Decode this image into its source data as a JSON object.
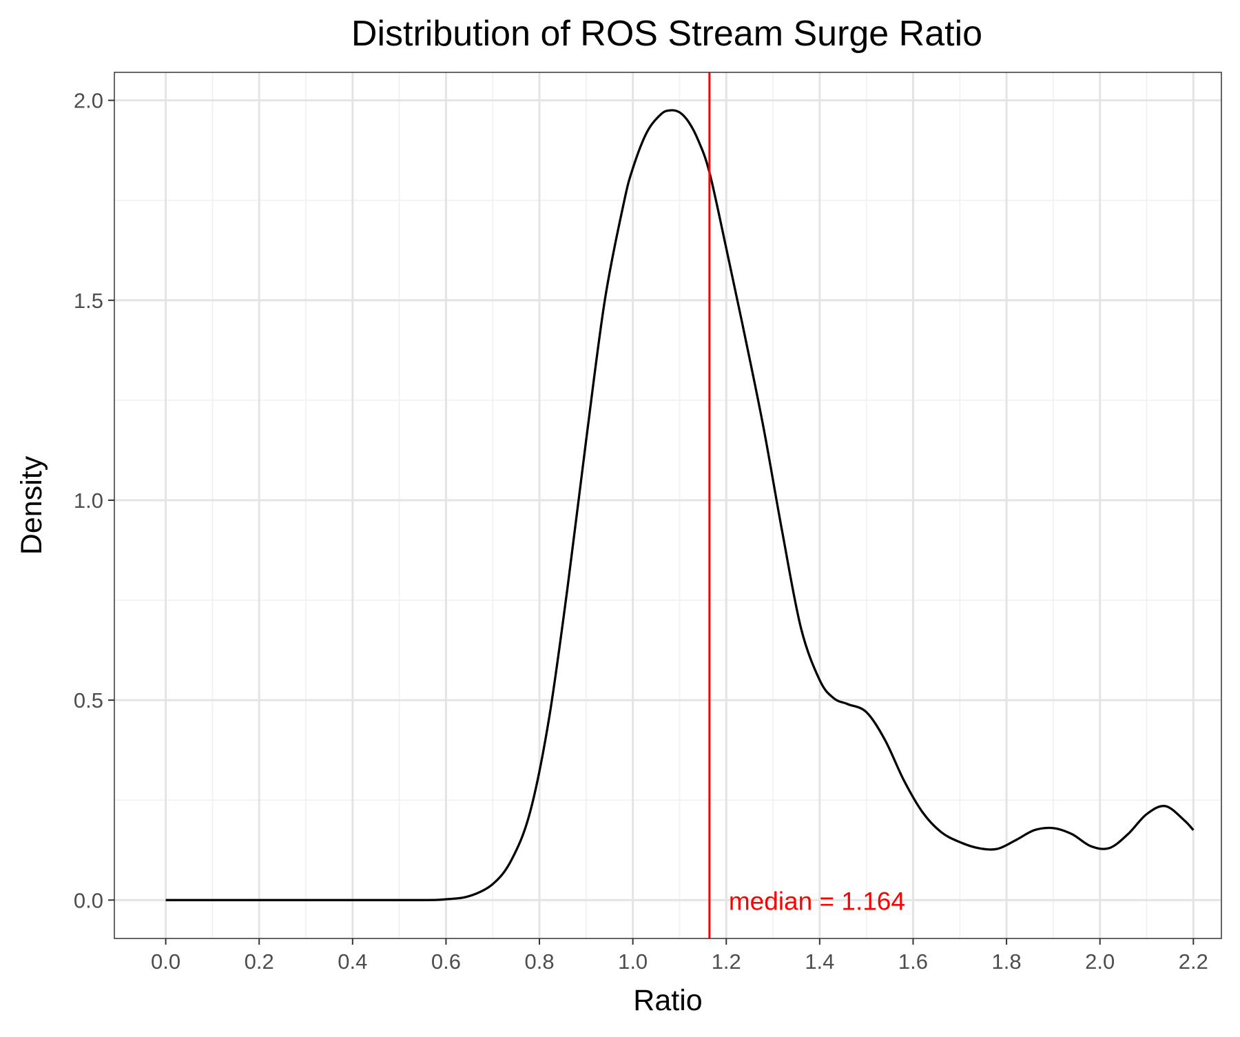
{
  "chart_data": {
    "type": "line",
    "title": "Distribution of ROS Stream Surge Ratio",
    "xlabel": "Ratio",
    "ylabel": "Density",
    "xlim": [
      -0.11,
      2.26
    ],
    "ylim": [
      -0.096,
      2.07
    ],
    "x_ticks": [
      0.0,
      0.2,
      0.4,
      0.6,
      0.8,
      1.0,
      1.2,
      1.4,
      1.6,
      1.8,
      2.0,
      2.2
    ],
    "x_tick_labels": [
      "0.0",
      "0.2",
      "0.4",
      "0.6",
      "0.8",
      "1.0",
      "1.2",
      "1.4",
      "1.6",
      "1.8",
      "2.0",
      "2.2"
    ],
    "y_ticks": [
      0.0,
      0.5,
      1.0,
      1.5,
      2.0
    ],
    "y_tick_labels": [
      "0.0",
      "0.5",
      "1.0",
      "1.5",
      "2.0"
    ],
    "grid": true,
    "series": [
      {
        "color": "#000000",
        "x": [
          0.0,
          0.2,
          0.4,
          0.55,
          0.6,
          0.65,
          0.7,
          0.74,
          0.78,
          0.82,
          0.86,
          0.9,
          0.94,
          0.98,
          1.0,
          1.03,
          1.06,
          1.08,
          1.1,
          1.12,
          1.14,
          1.164,
          1.2,
          1.24,
          1.28,
          1.32,
          1.36,
          1.4,
          1.43,
          1.46,
          1.5,
          1.54,
          1.58,
          1.62,
          1.66,
          1.7,
          1.74,
          1.78,
          1.82,
          1.86,
          1.9,
          1.94,
          1.98,
          2.02,
          2.06,
          2.1,
          2.14,
          2.18,
          2.2
        ],
        "y": [
          0.0,
          0.0,
          0.0,
          0.0,
          0.002,
          0.01,
          0.04,
          0.1,
          0.22,
          0.45,
          0.78,
          1.15,
          1.5,
          1.74,
          1.83,
          1.92,
          1.965,
          1.975,
          1.97,
          1.945,
          1.9,
          1.82,
          1.63,
          1.41,
          1.18,
          0.92,
          0.68,
          0.55,
          0.505,
          0.49,
          0.47,
          0.4,
          0.3,
          0.22,
          0.17,
          0.145,
          0.13,
          0.128,
          0.15,
          0.175,
          0.18,
          0.165,
          0.135,
          0.13,
          0.165,
          0.215,
          0.235,
          0.2,
          0.175
        ]
      }
    ],
    "reference_line": {
      "axis": "x",
      "value": 1.164,
      "color": "#ff0000",
      "label": "median = 1.164"
    }
  }
}
